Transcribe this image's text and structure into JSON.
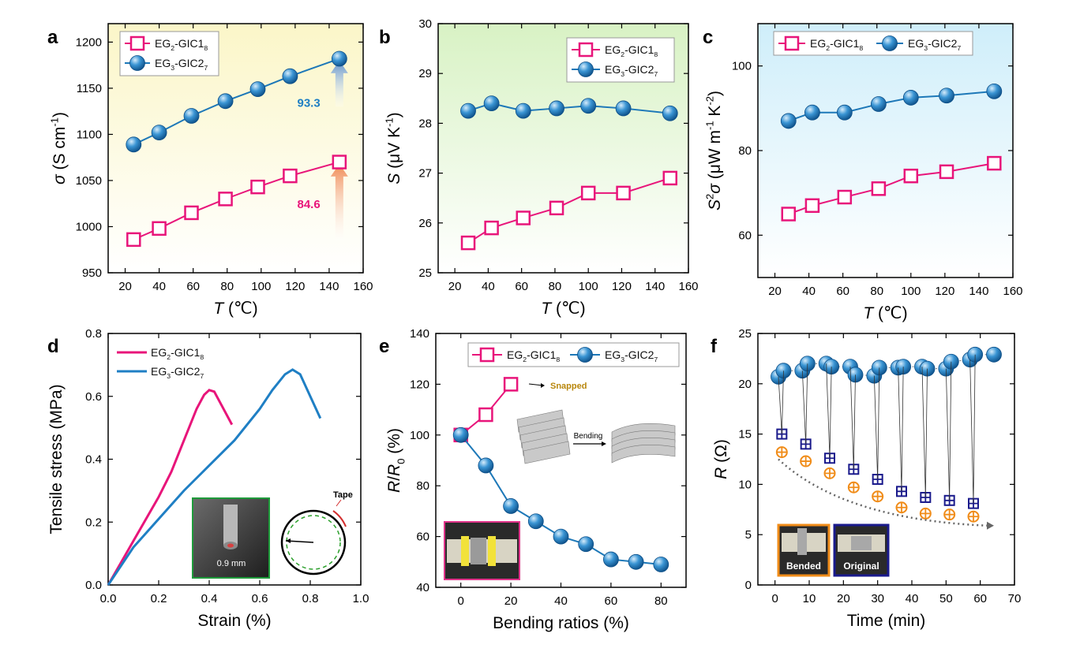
{
  "colors": {
    "pink": "#e8157a",
    "blue": "#1f7fc4",
    "teal": "#1d78b8",
    "navy": "#1a1a8c",
    "orange": "#f08c19"
  },
  "legend": {
    "eg2": {
      "base": "EG",
      "sub1": "2",
      "mid": "-GIC1",
      "sub2": "8"
    },
    "eg3": {
      "base": "EG",
      "sub1": "3",
      "mid": "-GIC2",
      "sub2": "7"
    }
  },
  "chart_data": [
    {
      "id": "a",
      "panel_label": "a",
      "type": "line",
      "xlabel": {
        "italic": "T",
        "rest": " (℃)"
      },
      "ylabel": {
        "italic": "σ",
        "rest": " (S cm",
        "sup": "-1",
        "end": ")"
      },
      "xlim": [
        10,
        160
      ],
      "ylim": [
        950,
        1220
      ],
      "xticks": [
        20,
        40,
        60,
        80,
        100,
        120,
        140,
        160
      ],
      "yticks": [
        950,
        1000,
        1050,
        1100,
        1150,
        1200
      ],
      "background": "yellow",
      "series": [
        {
          "key": "eg2",
          "marker": "square",
          "x": [
            25,
            40,
            59,
            79,
            98,
            117,
            146
          ],
          "y": [
            986,
            998,
            1015,
            1030,
            1043,
            1055,
            1070
          ]
        },
        {
          "key": "eg3",
          "marker": "ball",
          "x": [
            25,
            40,
            59,
            79,
            98,
            117,
            146
          ],
          "y": [
            1089,
            1102,
            1120,
            1136,
            1149,
            1163,
            1182
          ]
        }
      ],
      "annotations": [
        {
          "text": "93.3",
          "x": 128,
          "y": 1130,
          "color": "#1f7fc4"
        },
        {
          "text": "84.6",
          "x": 128,
          "y": 1020,
          "color": "#e8157a"
        }
      ],
      "arrows": [
        {
          "x": 146,
          "y_from": 1130,
          "y_to": 1180,
          "color": "#5b8fcc"
        },
        {
          "x": 146,
          "y_from": 985,
          "y_to": 1068,
          "color": "#f08a55"
        }
      ]
    },
    {
      "id": "b",
      "panel_label": "b",
      "type": "line",
      "xlabel": {
        "italic": "T",
        "rest": " (℃)"
      },
      "ylabel": {
        "italic": "S",
        "rest": " (μV K",
        "sup": "-1",
        "end": ")"
      },
      "xlim": [
        10,
        160
      ],
      "ylim": [
        25,
        30
      ],
      "xticks": [
        20,
        40,
        60,
        80,
        100,
        120,
        140,
        160
      ],
      "yticks": [
        25,
        26,
        27,
        28,
        29,
        30
      ],
      "background": "green",
      "series": [
        {
          "key": "eg2",
          "marker": "square",
          "x": [
            28,
            42,
            61,
            81,
            100,
            121,
            149
          ],
          "y": [
            25.6,
            25.9,
            26.1,
            26.3,
            26.6,
            26.6,
            26.9
          ]
        },
        {
          "key": "eg3",
          "marker": "ball",
          "x": [
            28,
            42,
            61,
            81,
            100,
            121,
            149
          ],
          "y": [
            28.25,
            28.4,
            28.25,
            28.3,
            28.35,
            28.3,
            28.2
          ]
        }
      ]
    },
    {
      "id": "c",
      "panel_label": "c",
      "type": "line",
      "xlabel": {
        "italic": "T",
        "rest": " (℃)"
      },
      "ylabel": {
        "italic": "S",
        "sup0": "2",
        "italic2": "σ",
        "rest": " (μW m",
        "sup": "-1",
        "mid": " K",
        "sup2": "-2",
        "end": ")"
      },
      "xlim": [
        10,
        160
      ],
      "ylim": [
        50,
        110
      ],
      "xticks": [
        20,
        40,
        60,
        80,
        100,
        120,
        140,
        160
      ],
      "yticks": [
        60,
        80,
        100
      ],
      "background": "cyan",
      "series": [
        {
          "key": "eg2",
          "marker": "square",
          "x": [
            28,
            42,
            61,
            81,
            100,
            121,
            149
          ],
          "y": [
            65,
            67,
            69,
            71,
            74,
            75,
            77
          ]
        },
        {
          "key": "eg3",
          "marker": "ball",
          "x": [
            28,
            42,
            61,
            81,
            100,
            121,
            149
          ],
          "y": [
            87,
            89,
            89,
            91,
            92.5,
            93,
            94
          ]
        }
      ]
    },
    {
      "id": "d",
      "panel_label": "d",
      "type": "line",
      "xlabel": {
        "rest": "Strain (%)"
      },
      "ylabel": {
        "rest": "Tensile stress (MPa)"
      },
      "xlim": [
        0,
        1.0
      ],
      "ylim": [
        0,
        0.8
      ],
      "xticks": [
        0.0,
        0.2,
        0.4,
        0.6,
        0.8,
        1.0
      ],
      "yticks": [
        0.0,
        0.2,
        0.4,
        0.6,
        0.8
      ],
      "series": [
        {
          "key": "eg2",
          "marker": "none",
          "x": [
            0,
            0.05,
            0.1,
            0.15,
            0.2,
            0.25,
            0.3,
            0.35,
            0.38,
            0.4,
            0.42,
            0.45,
            0.49
          ],
          "y": [
            0,
            0.07,
            0.14,
            0.21,
            0.28,
            0.36,
            0.46,
            0.56,
            0.605,
            0.62,
            0.615,
            0.57,
            0.51
          ]
        },
        {
          "key": "eg3",
          "marker": "none",
          "x": [
            0,
            0.1,
            0.2,
            0.3,
            0.4,
            0.5,
            0.6,
            0.65,
            0.7,
            0.73,
            0.76,
            0.8,
            0.84
          ],
          "y": [
            0,
            0.12,
            0.21,
            0.3,
            0.38,
            0.46,
            0.56,
            0.62,
            0.67,
            0.685,
            0.67,
            0.6,
            0.53
          ]
        }
      ],
      "insets": [
        {
          "type": "photo",
          "label": "0.9 mm"
        },
        {
          "type": "schematic",
          "label": "Tape"
        }
      ]
    },
    {
      "id": "e",
      "panel_label": "e",
      "type": "line",
      "xlabel": {
        "rest": "Bending ratios (%)"
      },
      "ylabel": {
        "italic": "R",
        "rest": "/",
        "italic2": "R",
        "sub": "0",
        "end": " (%)"
      },
      "xlim": [
        -10,
        90
      ],
      "ylim": [
        40,
        140
      ],
      "xticks": [
        0,
        20,
        40,
        60,
        80
      ],
      "yticks": [
        40,
        60,
        80,
        100,
        120,
        140
      ],
      "series": [
        {
          "key": "eg2",
          "marker": "square",
          "x": [
            0,
            10,
            20
          ],
          "y": [
            100,
            108,
            120
          ]
        },
        {
          "key": "eg3",
          "marker": "ball",
          "x": [
            0,
            10,
            20,
            30,
            40,
            50,
            60,
            70,
            80
          ],
          "y": [
            100,
            88,
            72,
            66,
            60,
            57,
            51,
            50,
            49
          ]
        }
      ],
      "annotations": [
        {
          "text": "Snapped"
        },
        {
          "text": "Bending"
        }
      ]
    },
    {
      "id": "f",
      "panel_label": "f",
      "type": "scatter",
      "xlabel": {
        "rest": "Time (min)"
      },
      "ylabel": {
        "italic": "R",
        "rest": " (Ω)"
      },
      "xlim": [
        -5,
        70
      ],
      "ylim": [
        0,
        25
      ],
      "xticks": [
        0,
        10,
        20,
        30,
        40,
        50,
        60,
        70
      ],
      "yticks": [
        0,
        5,
        10,
        15,
        20,
        25
      ],
      "series": [
        {
          "name": "original",
          "marker": "ball",
          "x": [
            1,
            2.5,
            8,
            9.5,
            15,
            16.5,
            22,
            23.5,
            29,
            30.5,
            36,
            37.5,
            43,
            44.5,
            50,
            51.5,
            57,
            58.5,
            64
          ],
          "y": [
            20.7,
            21.3,
            21.3,
            22.0,
            22.0,
            21.7,
            21.7,
            20.9,
            20.8,
            21.6,
            21.6,
            21.7,
            21.7,
            21.5,
            21.5,
            22.2,
            22.4,
            22.9,
            22.9
          ]
        },
        {
          "name": "bended-square",
          "marker": "square-plus",
          "x": [
            2,
            9,
            16,
            23,
            30,
            37,
            44,
            51,
            58
          ],
          "y": [
            15.0,
            14.0,
            12.6,
            11.5,
            10.5,
            9.3,
            8.7,
            8.4,
            8.1
          ]
        },
        {
          "name": "bended-circle",
          "marker": "circle-plus",
          "x": [
            2,
            9,
            16,
            23,
            30,
            37,
            44,
            51,
            58
          ],
          "y": [
            13.2,
            12.3,
            11.1,
            9.7,
            8.8,
            7.7,
            7.1,
            7.0,
            6.8
          ]
        }
      ],
      "insets": [
        {
          "label": "Bended"
        },
        {
          "label": "Original"
        }
      ]
    }
  ]
}
